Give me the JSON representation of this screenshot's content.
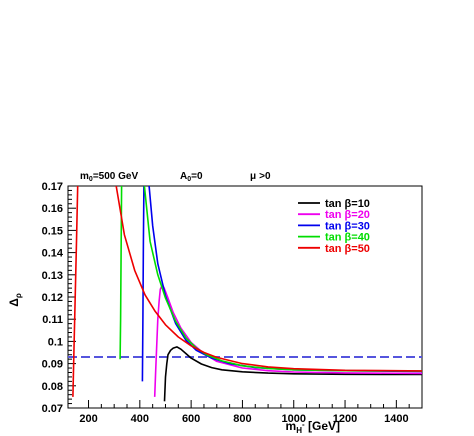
{
  "chart_data": {
    "type": "line",
    "header": {
      "m0": {
        "sym": "m",
        "sub": "0",
        "rest": "=500 GeV"
      },
      "a0": {
        "sym": "A",
        "sub": "0",
        "rest": "=0"
      },
      "mu": {
        "sym": "μ",
        "rest": ">0"
      }
    },
    "xlabel": {
      "main": "m",
      "sub": "H",
      "sup": "-",
      "rest": " [GeV]"
    },
    "ylabel": {
      "main": "Δ",
      "sub": "ρ"
    },
    "xlim": [
      120,
      1500
    ],
    "ylim": [
      0.07,
      0.17
    ],
    "xticks": [
      {
        "value": 200,
        "label": "200"
      },
      {
        "value": 400,
        "label": "400"
      },
      {
        "value": 600,
        "label": "600"
      },
      {
        "value": 800,
        "label": "800"
      },
      {
        "value": 1000,
        "label": "1000"
      },
      {
        "value": 1200,
        "label": "1200"
      },
      {
        "value": 1400,
        "label": "1400"
      }
    ],
    "yticks": [
      {
        "value": 0.07,
        "label": "0.07"
      },
      {
        "value": 0.08,
        "label": "0.08"
      },
      {
        "value": 0.09,
        "label": "0.09"
      },
      {
        "value": 0.1,
        "label": "0.1"
      },
      {
        "value": 0.11,
        "label": "0.11"
      },
      {
        "value": 0.12,
        "label": "0.12"
      },
      {
        "value": 0.13,
        "label": "0.13"
      },
      {
        "value": 0.14,
        "label": "0.14"
      },
      {
        "value": 0.15,
        "label": "0.15"
      },
      {
        "value": 0.16,
        "label": "0.16"
      },
      {
        "value": 0.17,
        "label": "0.17"
      }
    ],
    "reference_line": {
      "y": 0.093,
      "style": "dashed",
      "color": "#5555dd"
    },
    "legend_position": "top-right",
    "series": [
      {
        "name": "tan β=10",
        "color": "#000000",
        "points": [
          [
            496,
            0.073
          ],
          [
            500,
            0.084
          ],
          [
            505,
            0.09
          ],
          [
            510,
            0.094
          ],
          [
            520,
            0.096
          ],
          [
            530,
            0.097
          ],
          [
            545,
            0.0975
          ],
          [
            560,
            0.0965
          ],
          [
            580,
            0.0945
          ],
          [
            600,
            0.0925
          ],
          [
            640,
            0.0898
          ],
          [
            680,
            0.0882
          ],
          [
            720,
            0.0872
          ],
          [
            800,
            0.0863
          ],
          [
            900,
            0.0857
          ],
          [
            1000,
            0.0854
          ],
          [
            1200,
            0.0852
          ],
          [
            1500,
            0.0851
          ]
        ]
      },
      {
        "name": "tan β=20",
        "color": "#ee00ee",
        "points": [
          [
            458,
            0.075
          ],
          [
            462,
            0.087
          ],
          [
            466,
            0.099
          ],
          [
            470,
            0.11
          ],
          [
            475,
            0.118
          ],
          [
            480,
            0.1235
          ],
          [
            488,
            0.1255
          ],
          [
            495,
            0.124
          ],
          [
            510,
            0.1195
          ],
          [
            530,
            0.113
          ],
          [
            560,
            0.106
          ],
          [
            600,
            0.0995
          ],
          [
            650,
            0.0945
          ],
          [
            700,
            0.091
          ],
          [
            800,
            0.088
          ],
          [
            900,
            0.0868
          ],
          [
            1000,
            0.0862
          ],
          [
            1200,
            0.0858
          ],
          [
            1500,
            0.0856
          ]
        ]
      },
      {
        "name": "tan β=30",
        "color": "#0000ee",
        "points": [
          [
            410,
            0.082
          ],
          [
            412,
            0.11
          ],
          [
            414,
            0.145
          ],
          [
            416,
            0.17
          ],
          [
            null,
            null
          ],
          [
            436,
            0.17
          ],
          [
            450,
            0.152
          ],
          [
            470,
            0.135
          ],
          [
            500,
            0.1205
          ],
          [
            540,
            0.108
          ],
          [
            580,
            0.1005
          ],
          [
            620,
            0.096
          ],
          [
            680,
            0.0925
          ],
          [
            750,
            0.09
          ],
          [
            850,
            0.0882
          ],
          [
            1000,
            0.0872
          ],
          [
            1200,
            0.0868
          ],
          [
            1500,
            0.0865
          ]
        ]
      },
      {
        "name": "tan β=40",
        "color": "#00dd00",
        "points": [
          [
            323,
            0.092
          ],
          [
            325,
            0.11
          ],
          [
            327,
            0.14
          ],
          [
            329,
            0.17
          ],
          [
            null,
            null
          ],
          [
            418,
            0.17
          ],
          [
            440,
            0.145
          ],
          [
            470,
            0.13
          ],
          [
            500,
            0.1195
          ],
          [
            540,
            0.109
          ],
          [
            580,
            0.1015
          ],
          [
            620,
            0.097
          ],
          [
            660,
            0.094
          ],
          [
            720,
            0.0912
          ],
          [
            800,
            0.089
          ],
          [
            900,
            0.0878
          ],
          [
            1000,
            0.0872
          ],
          [
            1200,
            0.0868
          ],
          [
            1500,
            0.0866
          ]
        ]
      },
      {
        "name": "tan β=50",
        "color": "#ee0000",
        "points": [
          [
            139,
            0.075
          ],
          [
            143,
            0.095
          ],
          [
            148,
            0.12
          ],
          [
            153,
            0.145
          ],
          [
            158,
            0.17
          ],
          [
            null,
            null
          ],
          [
            308,
            0.17
          ],
          [
            340,
            0.148
          ],
          [
            380,
            0.132
          ],
          [
            420,
            0.121
          ],
          [
            460,
            0.1135
          ],
          [
            500,
            0.1075
          ],
          [
            550,
            0.102
          ],
          [
            600,
            0.098
          ],
          [
            650,
            0.095
          ],
          [
            700,
            0.0928
          ],
          [
            800,
            0.09
          ],
          [
            900,
            0.0885
          ],
          [
            1000,
            0.0877
          ],
          [
            1200,
            0.087
          ],
          [
            1500,
            0.0867
          ]
        ]
      }
    ]
  }
}
